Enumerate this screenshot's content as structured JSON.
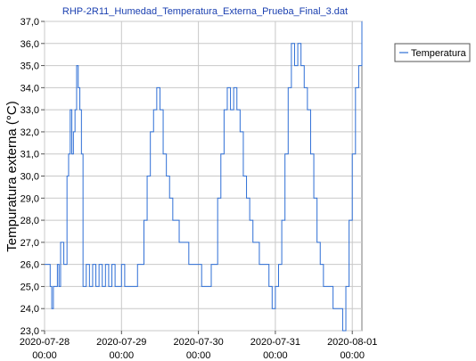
{
  "chart_data": {
    "type": "line",
    "title": "RHP-2R11_Humedad_Temperatura_Externa_Prueba_Final_3.dat",
    "ylabel": "Tempuratura externa (°C)",
    "xlabel": "",
    "ylim": [
      23.0,
      37.0
    ],
    "y_ticks": [
      "23,0",
      "24,0",
      "25,0",
      "26,0",
      "27,0",
      "28,0",
      "29,0",
      "30,0",
      "31,0",
      "32,0",
      "33,0",
      "34,0",
      "35,0",
      "36,0",
      "37,0"
    ],
    "x_range_days": [
      "2020-07-28 00:00",
      "2020-08-01 03:00"
    ],
    "x_ticks": [
      {
        "date": "2020-07-28",
        "time": "00:00"
      },
      {
        "date": "2020-07-29",
        "time": "00:00"
      },
      {
        "date": "2020-07-30",
        "time": "00:00"
      },
      {
        "date": "2020-07-31",
        "time": "00:00"
      },
      {
        "date": "2020-08-01",
        "time": "00:00"
      }
    ],
    "grid": true,
    "legend_position": "right",
    "series": [
      {
        "name": "Temperatura",
        "color": "#2f6fd6",
        "points": [
          [
            "2020-07-28 00:00",
            26
          ],
          [
            "2020-07-28 01:15",
            26
          ],
          [
            "2020-07-28 01:45",
            25
          ],
          [
            "2020-07-28 02:15",
            24
          ],
          [
            "2020-07-28 02:45",
            25
          ],
          [
            "2020-07-28 03:30",
            25
          ],
          [
            "2020-07-28 04:00",
            26
          ],
          [
            "2020-07-28 04:30",
            25
          ],
          [
            "2020-07-28 05:00",
            27
          ],
          [
            "2020-07-28 06:00",
            26
          ],
          [
            "2020-07-28 07:00",
            30
          ],
          [
            "2020-07-28 07:30",
            31
          ],
          [
            "2020-07-28 08:00",
            33
          ],
          [
            "2020-07-28 08:30",
            31
          ],
          [
            "2020-07-28 09:00",
            32
          ],
          [
            "2020-07-28 09:30",
            33
          ],
          [
            "2020-07-28 10:00",
            35
          ],
          [
            "2020-07-28 10:30",
            34
          ],
          [
            "2020-07-28 11:00",
            33
          ],
          [
            "2020-07-28 11:30",
            31
          ],
          [
            "2020-07-28 12:00",
            25
          ],
          [
            "2020-07-28 13:00",
            26
          ],
          [
            "2020-07-28 14:00",
            25
          ],
          [
            "2020-07-28 15:00",
            26
          ],
          [
            "2020-07-28 16:00",
            25
          ],
          [
            "2020-07-28 17:00",
            26
          ],
          [
            "2020-07-28 18:00",
            25
          ],
          [
            "2020-07-28 19:00",
            26
          ],
          [
            "2020-07-28 20:00",
            25
          ],
          [
            "2020-07-28 21:00",
            26
          ],
          [
            "2020-07-28 22:00",
            25
          ],
          [
            "2020-07-29 00:00",
            26
          ],
          [
            "2020-07-29 01:00",
            25
          ],
          [
            "2020-07-29 04:00",
            25
          ],
          [
            "2020-07-29 05:00",
            26
          ],
          [
            "2020-07-29 07:00",
            28
          ],
          [
            "2020-07-29 08:00",
            30
          ],
          [
            "2020-07-29 09:00",
            32
          ],
          [
            "2020-07-29 10:00",
            33
          ],
          [
            "2020-07-29 11:00",
            34
          ],
          [
            "2020-07-29 12:00",
            33
          ],
          [
            "2020-07-29 13:00",
            31
          ],
          [
            "2020-07-29 14:00",
            30
          ],
          [
            "2020-07-29 15:00",
            29
          ],
          [
            "2020-07-29 16:00",
            28
          ],
          [
            "2020-07-29 18:00",
            27
          ],
          [
            "2020-07-29 20:00",
            27
          ],
          [
            "2020-07-29 21:00",
            26
          ],
          [
            "2020-07-29 22:00",
            26
          ],
          [
            "2020-07-30 00:00",
            26
          ],
          [
            "2020-07-30 01:00",
            25
          ],
          [
            "2020-07-30 03:00",
            25
          ],
          [
            "2020-07-30 04:00",
            26
          ],
          [
            "2020-07-30 06:00",
            29
          ],
          [
            "2020-07-30 07:00",
            31
          ],
          [
            "2020-07-30 08:00",
            33
          ],
          [
            "2020-07-30 09:00",
            34
          ],
          [
            "2020-07-30 10:00",
            33
          ],
          [
            "2020-07-30 11:00",
            34
          ],
          [
            "2020-07-30 12:00",
            33
          ],
          [
            "2020-07-30 13:00",
            32
          ],
          [
            "2020-07-30 14:00",
            30
          ],
          [
            "2020-07-30 15:00",
            29
          ],
          [
            "2020-07-30 16:00",
            28
          ],
          [
            "2020-07-30 17:00",
            27
          ],
          [
            "2020-07-30 19:00",
            26
          ],
          [
            "2020-07-30 21:00",
            26
          ],
          [
            "2020-07-30 22:00",
            25
          ],
          [
            "2020-07-30 23:00",
            24
          ],
          [
            "2020-07-31 00:00",
            25
          ],
          [
            "2020-07-31 01:00",
            26
          ],
          [
            "2020-07-31 02:00",
            28
          ],
          [
            "2020-07-31 03:00",
            31
          ],
          [
            "2020-07-31 04:00",
            34
          ],
          [
            "2020-07-31 05:00",
            36
          ],
          [
            "2020-07-31 06:00",
            35
          ],
          [
            "2020-07-31 07:00",
            36
          ],
          [
            "2020-07-31 08:00",
            35
          ],
          [
            "2020-07-31 09:00",
            34
          ],
          [
            "2020-07-31 10:00",
            33
          ],
          [
            "2020-07-31 11:00",
            31
          ],
          [
            "2020-07-31 12:00",
            29
          ],
          [
            "2020-07-31 13:00",
            27
          ],
          [
            "2020-07-31 14:00",
            26
          ],
          [
            "2020-07-31 15:00",
            25
          ],
          [
            "2020-07-31 17:00",
            25
          ],
          [
            "2020-07-31 18:00",
            24
          ],
          [
            "2020-07-31 20:00",
            24
          ],
          [
            "2020-07-31 21:00",
            23
          ],
          [
            "2020-07-31 22:00",
            25
          ],
          [
            "2020-07-31 23:00",
            28
          ],
          [
            "2020-08-01 00:00",
            31
          ],
          [
            "2020-08-01 01:00",
            34
          ],
          [
            "2020-08-01 02:00",
            35
          ],
          [
            "2020-08-01 03:00",
            37
          ]
        ]
      }
    ]
  }
}
